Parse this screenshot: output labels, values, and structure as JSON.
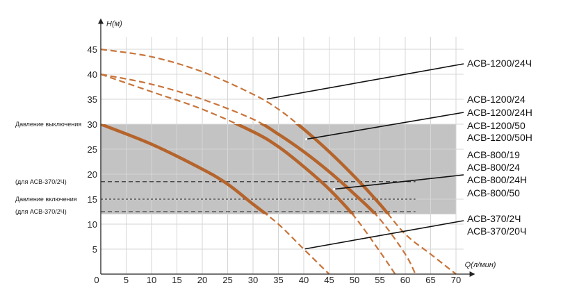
{
  "chart_data": {
    "type": "line",
    "title": "",
    "xlabel": "Q(л/мин)",
    "ylabel": "H(м)",
    "xlim": [
      0,
      72
    ],
    "ylim": [
      0,
      48
    ],
    "x_ticks": [
      "0",
      "5",
      "10",
      "15",
      "20",
      "25",
      "30",
      "35",
      "40",
      "45",
      "50",
      "55",
      "60",
      "65",
      "70"
    ],
    "y_ticks": [
      "5",
      "10",
      "15",
      "20",
      "25",
      "30",
      "35",
      "40",
      "45"
    ],
    "grid": true,
    "operating_band": {
      "y_from": 12,
      "y_to": 30,
      "x_from": 0,
      "x_to": 70
    },
    "pressure_markers": [
      {
        "label": "Давление выключения",
        "y": 30
      },
      {
        "label": "(для АСВ-370/2Ч)",
        "y": 18.5
      },
      {
        "label": "Давление включения",
        "y": 15
      },
      {
        "label": "(для АСВ-370/2Ч)",
        "y": 12.5
      }
    ],
    "series": [
      {
        "x": [
          0,
          10,
          20,
          30,
          35,
          40,
          45,
          50,
          55,
          60,
          65,
          70
        ],
        "y": [
          45,
          43.5,
          40.5,
          36,
          33,
          29,
          24.5,
          19.5,
          14,
          8,
          4,
          0
        ]
      },
      {
        "x": [
          0,
          10,
          20,
          30,
          35,
          40,
          45,
          50,
          55,
          60,
          62
        ],
        "y": [
          40,
          38,
          35,
          31,
          28,
          24.5,
          20.5,
          16,
          11,
          4,
          0
        ]
      },
      {
        "x": [
          0,
          10,
          20,
          30,
          35,
          40,
          45,
          50,
          55,
          58
        ],
        "y": [
          40,
          36.5,
          33,
          28.5,
          25.5,
          21.5,
          17,
          11.5,
          4.5,
          0
        ]
      },
      {
        "x": [
          0,
          10,
          20,
          25,
          30,
          35,
          40,
          45
        ],
        "y": [
          30,
          26,
          21,
          18,
          14,
          10,
          5,
          0
        ]
      }
    ],
    "annotations": [
      {
        "text": "АСВ-1200/24Ч",
        "x": 32.5,
        "y": 35
      },
      {
        "text": "АСВ-1200/24",
        "x": 40.5,
        "y": 27
      },
      {
        "text": "АСВ-1200/24Н",
        "x": 40.5,
        "y": 27
      },
      {
        "text": "АСВ-1200/50",
        "x": 40.5,
        "y": 27
      },
      {
        "text": "АСВ-1200/50Н",
        "x": 40.5,
        "y": 27
      },
      {
        "text": "АСВ-800/19",
        "x": 46,
        "y": 17
      },
      {
        "text": "АСВ-800/24",
        "x": 46,
        "y": 17
      },
      {
        "text": "АСВ-800/24Н",
        "x": 46,
        "y": 17
      },
      {
        "text": "АСВ-800/50",
        "x": 46,
        "y": 17
      },
      {
        "text": "АСВ-370/2Ч",
        "x": 40,
        "y": 5
      },
      {
        "text": "АСВ-370/20Ч",
        "x": 40,
        "y": 5
      }
    ]
  },
  "colors": {
    "curve": "#c8743a",
    "curve_solid": "#b5642c",
    "band": "#c3c3c3",
    "grid": "#d6d6d6",
    "axis": "#222222",
    "leader": "#111111"
  }
}
